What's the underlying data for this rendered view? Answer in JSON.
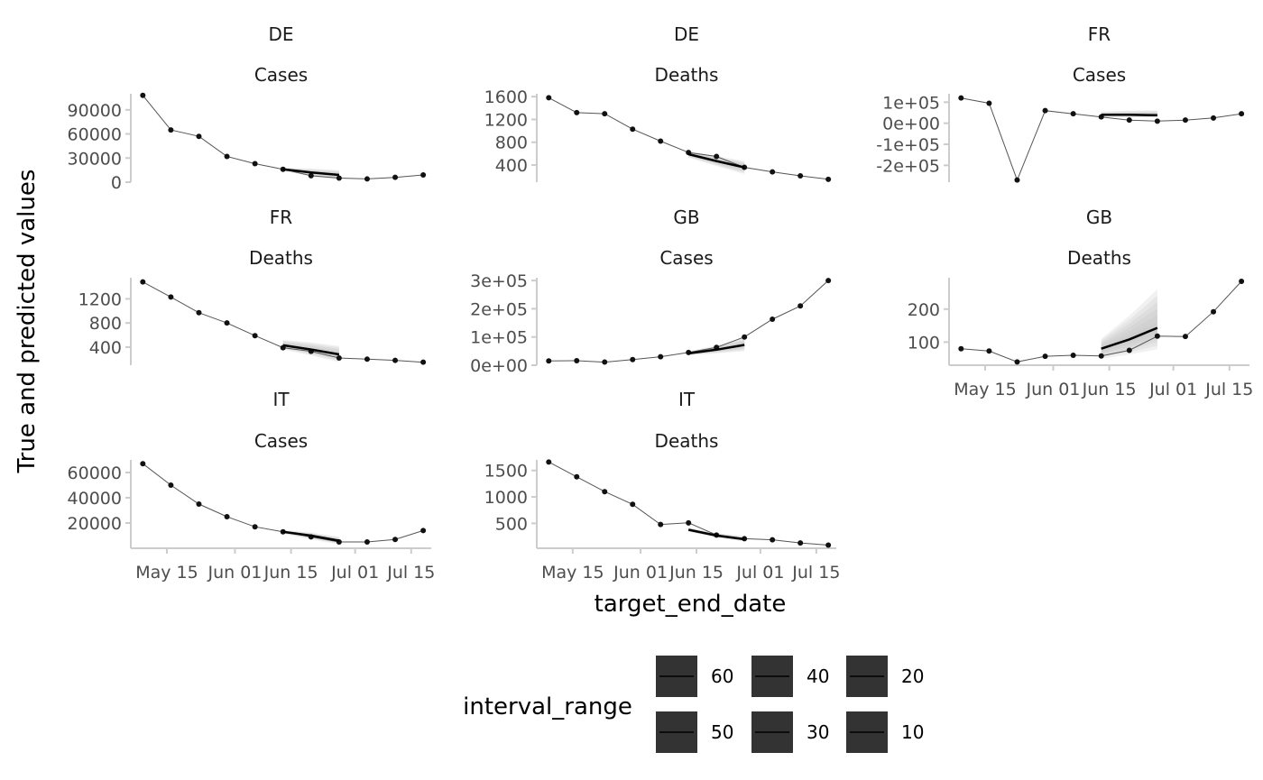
{
  "axis_titles": {
    "x": "target_end_date",
    "y": "True and predicted values"
  },
  "legend": {
    "title": "interval_range",
    "items": [
      {
        "label": "60"
      },
      {
        "label": "40"
      },
      {
        "label": "20"
      },
      {
        "label": "50"
      },
      {
        "label": "30"
      },
      {
        "label": "10"
      }
    ],
    "key_color": "#333333"
  },
  "colors": {
    "truth": "#555555",
    "point": "#111111",
    "forecast": "#000000",
    "band": "#bdbdbd",
    "axis": "#cccccc"
  },
  "chart_data": {
    "type": "line",
    "x_tick_labels": [
      "May 15",
      "Jun 01",
      "Jun 15",
      "Jul 01",
      "Jul 15"
    ],
    "x_tick_dates": [
      "2020-05-15",
      "2020-06-01",
      "2020-06-15",
      "2020-07-01",
      "2020-07-15"
    ],
    "xlim": [
      "2020-05-06",
      "2020-07-20"
    ],
    "panels": [
      {
        "location": "DE",
        "target": "Cases",
        "y_ticks": [
          0,
          30000,
          60000,
          90000
        ],
        "y_tick_labels": [
          "0",
          "30000",
          "60000",
          "90000"
        ],
        "ylim": [
          0,
          110000
        ],
        "truth": {
          "dates": [
            "2020-05-09",
            "2020-05-16",
            "2020-05-23",
            "2020-05-30",
            "2020-06-06",
            "2020-06-13",
            "2020-06-20",
            "2020-06-27",
            "2020-07-04",
            "2020-07-11",
            "2020-07-18"
          ],
          "values": [
            108000,
            65000,
            57000,
            32000,
            23000,
            16000,
            8000,
            5000,
            4000,
            6000,
            9000
          ]
        },
        "forecast": {
          "dates": [
            "2020-06-13",
            "2020-06-20",
            "2020-06-27"
          ],
          "median": [
            16000,
            12000,
            9000
          ],
          "lower": [
            14000,
            7000,
            3000
          ],
          "upper": [
            18000,
            17000,
            15000
          ]
        }
      },
      {
        "location": "DE",
        "target": "Deaths",
        "y_ticks": [
          400,
          800,
          1200,
          1600
        ],
        "y_tick_labels": [
          "400",
          "800",
          "1200",
          "1600"
        ],
        "ylim": [
          100,
          1650
        ],
        "truth": {
          "dates": [
            "2020-05-09",
            "2020-05-16",
            "2020-05-23",
            "2020-05-30",
            "2020-06-06",
            "2020-06-13",
            "2020-06-20",
            "2020-06-27",
            "2020-07-04",
            "2020-07-11",
            "2020-07-18"
          ],
          "values": [
            1580,
            1320,
            1300,
            1030,
            820,
            620,
            550,
            360,
            280,
            210,
            150
          ]
        },
        "forecast": {
          "dates": [
            "2020-06-13",
            "2020-06-20",
            "2020-06-27"
          ],
          "median": [
            590,
            470,
            360
          ],
          "lower": [
            530,
            380,
            240
          ],
          "upper": [
            650,
            560,
            470
          ]
        }
      },
      {
        "location": "FR",
        "target": "Cases",
        "y_ticks": [
          -200000,
          -100000,
          0,
          100000
        ],
        "y_tick_labels": [
          "-2e+05",
          "-1e+05",
          "0e+00",
          "1e+05"
        ],
        "ylim": [
          -280000,
          140000
        ],
        "truth": {
          "dates": [
            "2020-05-09",
            "2020-05-16",
            "2020-05-23",
            "2020-05-30",
            "2020-06-06",
            "2020-06-13",
            "2020-06-20",
            "2020-06-27",
            "2020-07-04",
            "2020-07-11",
            "2020-07-18"
          ],
          "values": [
            120000,
            95000,
            -270000,
            60000,
            45000,
            30000,
            15000,
            10000,
            15000,
            25000,
            45000
          ]
        },
        "forecast": {
          "dates": [
            "2020-06-13",
            "2020-06-20",
            "2020-06-27"
          ],
          "median": [
            40000,
            40000,
            38000
          ],
          "lower": [
            30000,
            28000,
            26000
          ],
          "upper": [
            55000,
            60000,
            62000
          ]
        }
      },
      {
        "location": "FR",
        "target": "Deaths",
        "y_ticks": [
          400,
          800,
          1200
        ],
        "y_tick_labels": [
          "400",
          "800",
          "1200"
        ],
        "ylim": [
          100,
          1550
        ],
        "truth": {
          "dates": [
            "2020-05-09",
            "2020-05-16",
            "2020-05-23",
            "2020-05-30",
            "2020-06-06",
            "2020-06-13",
            "2020-06-20",
            "2020-06-27",
            "2020-07-04",
            "2020-07-11",
            "2020-07-18"
          ],
          "values": [
            1480,
            1230,
            970,
            800,
            590,
            390,
            330,
            220,
            200,
            180,
            150
          ]
        },
        "forecast": {
          "dates": [
            "2020-06-13",
            "2020-06-20",
            "2020-06-27"
          ],
          "median": [
            430,
            360,
            280
          ],
          "lower": [
            360,
            260,
            150
          ],
          "upper": [
            520,
            480,
            420
          ]
        }
      },
      {
        "location": "GB",
        "target": "Cases",
        "y_ticks": [
          0,
          100000,
          200000,
          300000
        ],
        "y_tick_labels": [
          "0e+00",
          "1e+05",
          "2e+05",
          "3e+05"
        ],
        "ylim": [
          0,
          310000
        ],
        "truth": {
          "dates": [
            "2020-05-09",
            "2020-05-16",
            "2020-05-23",
            "2020-05-30",
            "2020-06-06",
            "2020-06-13",
            "2020-06-20",
            "2020-06-27",
            "2020-07-04",
            "2020-07-11",
            "2020-07-18"
          ],
          "values": [
            15000,
            16000,
            11000,
            20000,
            30000,
            45000,
            63000,
            100000,
            163000,
            210000,
            300000
          ]
        },
        "forecast": {
          "dates": [
            "2020-06-13",
            "2020-06-20",
            "2020-06-27"
          ],
          "median": [
            42000,
            55000,
            72000
          ],
          "lower": [
            35000,
            42000,
            50000
          ],
          "upper": [
            50000,
            70000,
            98000
          ]
        }
      },
      {
        "location": "GB",
        "target": "Deaths",
        "y_ticks": [
          100,
          200
        ],
        "y_tick_labels": [
          "100",
          "200"
        ],
        "ylim": [
          30,
          295
        ],
        "truth": {
          "dates": [
            "2020-05-09",
            "2020-05-16",
            "2020-05-23",
            "2020-05-30",
            "2020-06-06",
            "2020-06-13",
            "2020-06-20",
            "2020-06-27",
            "2020-07-04",
            "2020-07-11",
            "2020-07-18"
          ],
          "values": [
            80,
            73,
            40,
            57,
            60,
            58,
            75,
            118,
            117,
            192,
            284
          ]
        },
        "forecast": {
          "dates": [
            "2020-06-13",
            "2020-06-20",
            "2020-06-27"
          ],
          "median": [
            80,
            108,
            143
          ],
          "lower": [
            50,
            62,
            78
          ],
          "upper": [
            110,
            180,
            260
          ]
        }
      },
      {
        "location": "IT",
        "target": "Cases",
        "y_ticks": [
          20000,
          40000,
          60000
        ],
        "y_tick_labels": [
          "20000",
          "40000",
          "60000"
        ],
        "ylim": [
          0,
          70000
        ],
        "truth": {
          "dates": [
            "2020-05-09",
            "2020-05-16",
            "2020-05-23",
            "2020-05-30",
            "2020-06-06",
            "2020-06-13",
            "2020-06-20",
            "2020-06-27",
            "2020-07-04",
            "2020-07-11",
            "2020-07-18"
          ],
          "values": [
            67000,
            50000,
            35000,
            25000,
            17000,
            13000,
            9000,
            5000,
            5000,
            7000,
            14000
          ]
        },
        "forecast": {
          "dates": [
            "2020-06-13",
            "2020-06-20",
            "2020-06-27"
          ],
          "median": [
            13000,
            10000,
            6000
          ],
          "lower": [
            11500,
            7000,
            3000
          ],
          "upper": [
            14500,
            12500,
            9000
          ]
        }
      },
      {
        "location": "IT",
        "target": "Deaths",
        "y_ticks": [
          500,
          1000,
          1500
        ],
        "y_tick_labels": [
          "500",
          "1000",
          "1500"
        ],
        "ylim": [
          30,
          1700
        ],
        "truth": {
          "dates": [
            "2020-05-09",
            "2020-05-16",
            "2020-05-23",
            "2020-05-30",
            "2020-06-06",
            "2020-06-13",
            "2020-06-20",
            "2020-06-27",
            "2020-07-04",
            "2020-07-11",
            "2020-07-18"
          ],
          "values": [
            1660,
            1380,
            1100,
            860,
            480,
            510,
            280,
            210,
            190,
            130,
            90
          ]
        },
        "forecast": {
          "dates": [
            "2020-06-13",
            "2020-06-20",
            "2020-06-27"
          ],
          "median": [
            380,
            270,
            200
          ],
          "lower": [
            340,
            230,
            160
          ],
          "upper": [
            420,
            320,
            260
          ]
        }
      }
    ]
  }
}
